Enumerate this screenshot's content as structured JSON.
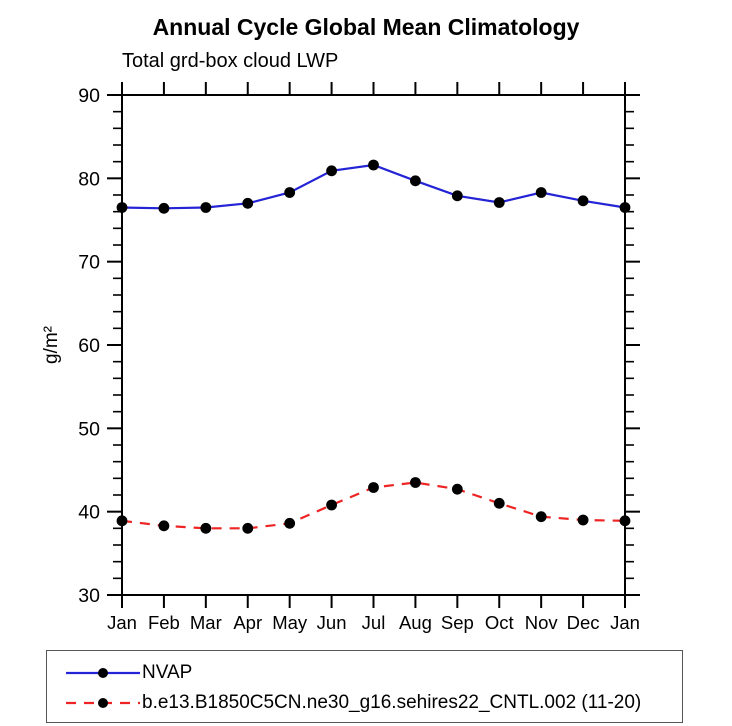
{
  "page_title": "Annual Cycle Global Mean Climatology",
  "chart_data": {
    "type": "line",
    "title": "Annual Cycle Global Mean Climatology",
    "subtitle": "Total grd-box cloud LWP",
    "xlabel": "",
    "ylabel": "g/m²",
    "categories": [
      "Jan",
      "Feb",
      "Mar",
      "Apr",
      "May",
      "Jun",
      "Jul",
      "Aug",
      "Sep",
      "Oct",
      "Nov",
      "Dec",
      "Jan"
    ],
    "ylim": [
      30,
      90
    ],
    "ytick_major": [
      90,
      80,
      70,
      60,
      50,
      40,
      30
    ],
    "ytick_minor_step": 2,
    "grid": false,
    "legend_position": "bottom-left-box",
    "series": [
      {
        "name": "NVAP",
        "color": "#2424d6",
        "line_style": "solid",
        "marker": "circle",
        "marker_color": "#000000",
        "values": [
          76.5,
          76.4,
          76.5,
          77.0,
          78.3,
          80.9,
          81.6,
          79.7,
          77.9,
          77.1,
          78.3,
          77.3,
          76.5
        ]
      },
      {
        "name": "b.e13.B1850C5CN.ne30_g16.sehires22_CNTL.002 (11-20)",
        "color": "#ee2424",
        "line_style": "dashed",
        "marker": "circle",
        "marker_color": "#000000",
        "values": [
          38.9,
          38.3,
          38.0,
          38.0,
          38.6,
          40.8,
          42.9,
          43.5,
          42.7,
          41.0,
          39.4,
          39.0,
          38.9
        ]
      }
    ]
  },
  "colors": {
    "axis": "#000000",
    "text": "#000000",
    "legend_border": "#555555",
    "background": "#ffffff"
  }
}
